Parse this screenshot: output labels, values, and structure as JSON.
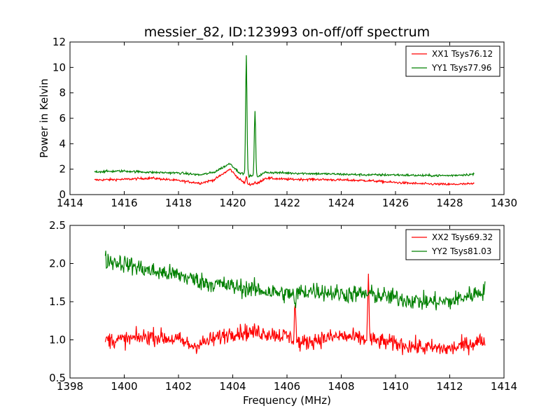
{
  "chart_data": [
    {
      "type": "line",
      "title": "messier_82, ID:123993 on-off/off spectrum",
      "xlabel": "",
      "ylabel": "Power in Kelvin",
      "xlim": [
        1414,
        1430
      ],
      "ylim": [
        0,
        12
      ],
      "xticks": [
        1414,
        1416,
        1418,
        1420,
        1422,
        1424,
        1426,
        1428,
        1430
      ],
      "yticks": [
        0,
        2,
        4,
        6,
        8,
        10,
        12
      ],
      "grid": false,
      "legend_position": "top-right",
      "x_range": [
        1414.9,
        1428.9
      ],
      "series": [
        {
          "name": "XX1 Tsys76.12",
          "color": "#ff0000",
          "noise": 0.09,
          "points": [
            [
              1414.9,
              1.15
            ],
            [
              1416,
              1.2
            ],
            [
              1417,
              1.3
            ],
            [
              1418,
              1.1
            ],
            [
              1418.8,
              0.9
            ],
            [
              1419.3,
              1.15
            ],
            [
              1419.9,
              2.0
            ],
            [
              1420.2,
              1.3
            ],
            [
              1420.5,
              0.8
            ],
            [
              1420.9,
              0.85
            ],
            [
              1421.2,
              1.3
            ],
            [
              1422,
              1.2
            ],
            [
              1423,
              1.2
            ],
            [
              1424,
              1.15
            ],
            [
              1425,
              1.1
            ],
            [
              1426,
              0.95
            ],
            [
              1427,
              0.85
            ],
            [
              1428,
              0.8
            ],
            [
              1428.9,
              0.85
            ]
          ],
          "spikes": [
            [
              1420.5,
              1.4
            ],
            [
              1420.82,
              1.0
            ]
          ]
        },
        {
          "name": "YY1 Tsys77.96",
          "color": "#008000",
          "noise": 0.09,
          "points": [
            [
              1414.9,
              1.8
            ],
            [
              1416,
              1.85
            ],
            [
              1417,
              1.75
            ],
            [
              1418,
              1.7
            ],
            [
              1418.8,
              1.55
            ],
            [
              1419.3,
              1.75
            ],
            [
              1419.9,
              2.45
            ],
            [
              1420.2,
              1.8
            ],
            [
              1420.5,
              1.5
            ],
            [
              1420.9,
              1.4
            ],
            [
              1421.2,
              1.75
            ],
            [
              1422,
              1.7
            ],
            [
              1423,
              1.65
            ],
            [
              1424,
              1.6
            ],
            [
              1425,
              1.55
            ],
            [
              1426,
              1.55
            ],
            [
              1427,
              1.5
            ],
            [
              1428,
              1.5
            ],
            [
              1428.9,
              1.6
            ]
          ],
          "spikes": [
            [
              1420.5,
              11.0
            ],
            [
              1420.82,
              6.6
            ]
          ]
        }
      ]
    },
    {
      "type": "line",
      "title": "",
      "xlabel": "Frequency (MHz)",
      "ylabel": "",
      "xlim": [
        1398,
        1414
      ],
      "ylim": [
        0.5,
        2.5
      ],
      "xticks": [
        1398,
        1400,
        1402,
        1404,
        1406,
        1408,
        1410,
        1412,
        1414
      ],
      "yticks": [
        0.5,
        1.0,
        1.5,
        2.0,
        2.5
      ],
      "grid": false,
      "legend_position": "top-right",
      "x_range": [
        1399.3,
        1413.3
      ],
      "series": [
        {
          "name": "XX2 Tsys69.32",
          "color": "#ff0000",
          "noise": 0.11,
          "points": [
            [
              1399.3,
              1.0
            ],
            [
              1400,
              1.0
            ],
            [
              1401,
              1.05
            ],
            [
              1402,
              1.0
            ],
            [
              1402.5,
              0.92
            ],
            [
              1403,
              0.97
            ],
            [
              1404,
              1.1
            ],
            [
              1405,
              1.1
            ],
            [
              1406,
              1.05
            ],
            [
              1406.5,
              0.95
            ],
            [
              1407,
              1.0
            ],
            [
              1408,
              1.05
            ],
            [
              1409,
              1.0
            ],
            [
              1410,
              0.95
            ],
            [
              1411,
              0.9
            ],
            [
              1412,
              0.88
            ],
            [
              1413.3,
              1.0
            ]
          ],
          "spikes": [
            [
              1406.3,
              1.5
            ],
            [
              1409.0,
              1.8
            ]
          ]
        },
        {
          "name": "YY2 Tsys81.03",
          "color": "#008000",
          "noise": 0.12,
          "points": [
            [
              1399.3,
              2.05
            ],
            [
              1400,
              2.0
            ],
            [
              1401,
              1.9
            ],
            [
              1402,
              1.85
            ],
            [
              1403,
              1.75
            ],
            [
              1404,
              1.7
            ],
            [
              1405,
              1.65
            ],
            [
              1406,
              1.6
            ],
            [
              1407,
              1.65
            ],
            [
              1408,
              1.6
            ],
            [
              1409,
              1.6
            ],
            [
              1410,
              1.55
            ],
            [
              1411,
              1.5
            ],
            [
              1412,
              1.5
            ],
            [
              1413.3,
              1.65
            ]
          ],
          "spikes": [
            [
              1406.3,
              1.38
            ]
          ]
        }
      ]
    }
  ]
}
